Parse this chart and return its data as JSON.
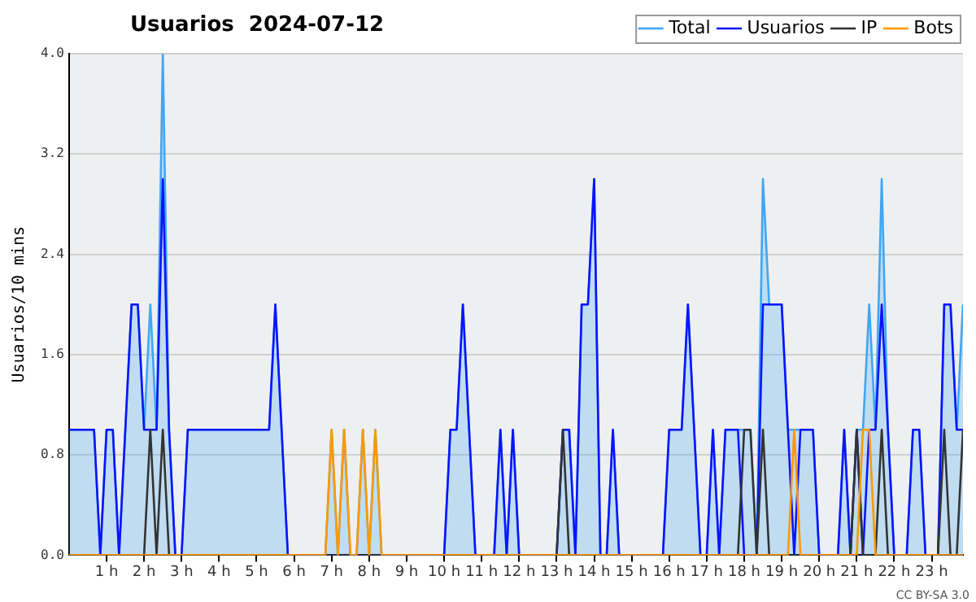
{
  "chart_data": {
    "type": "line",
    "title": "Usuarios  2024-07-12",
    "ylabel": "Usuarios/10 mins",
    "x": [
      "2024-07-12T00:00",
      "2024-07-12T00:10",
      "2024-07-12T00:20",
      "2024-07-12T00:30",
      "2024-07-12T00:40",
      "2024-07-12T00:50",
      "2024-07-12T01:00",
      "2024-07-12T01:10",
      "2024-07-12T01:20",
      "2024-07-12T01:30",
      "2024-07-12T01:40",
      "2024-07-12T01:50",
      "2024-07-12T02:00",
      "2024-07-12T02:10",
      "2024-07-12T02:20",
      "2024-07-12T02:30",
      "2024-07-12T02:40",
      "2024-07-12T02:50",
      "2024-07-12T03:00",
      "2024-07-12T03:10",
      "2024-07-12T03:20",
      "2024-07-12T03:30",
      "2024-07-12T03:40",
      "2024-07-12T03:50",
      "2024-07-12T04:00",
      "2024-07-12T04:10",
      "2024-07-12T04:20",
      "2024-07-12T04:30",
      "2024-07-12T04:40",
      "2024-07-12T04:50",
      "2024-07-12T05:00",
      "2024-07-12T05:10",
      "2024-07-12T05:20",
      "2024-07-12T05:30",
      "2024-07-12T05:40",
      "2024-07-12T05:50",
      "2024-07-12T06:00",
      "2024-07-12T06:10",
      "2024-07-12T06:20",
      "2024-07-12T06:30",
      "2024-07-12T06:40",
      "2024-07-12T06:50",
      "2024-07-12T07:00",
      "2024-07-12T07:10",
      "2024-07-12T07:20",
      "2024-07-12T07:30",
      "2024-07-12T07:40",
      "2024-07-12T07:50",
      "2024-07-12T08:00",
      "2024-07-12T08:10",
      "2024-07-12T08:20",
      "2024-07-12T08:30",
      "2024-07-12T08:40",
      "2024-07-12T08:50",
      "2024-07-12T09:00",
      "2024-07-12T09:10",
      "2024-07-12T09:20",
      "2024-07-12T09:30",
      "2024-07-12T09:40",
      "2024-07-12T09:50",
      "2024-07-12T10:00",
      "2024-07-12T10:10",
      "2024-07-12T10:20",
      "2024-07-12T10:30",
      "2024-07-12T10:40",
      "2024-07-12T10:50",
      "2024-07-12T11:00",
      "2024-07-12T11:10",
      "2024-07-12T11:20",
      "2024-07-12T11:30",
      "2024-07-12T11:40",
      "2024-07-12T11:50",
      "2024-07-12T12:00",
      "2024-07-12T12:10",
      "2024-07-12T12:20",
      "2024-07-12T12:30",
      "2024-07-12T12:40",
      "2024-07-12T12:50",
      "2024-07-12T13:00",
      "2024-07-12T13:10",
      "2024-07-12T13:20",
      "2024-07-12T13:30",
      "2024-07-12T13:40",
      "2024-07-12T13:50",
      "2024-07-12T14:00",
      "2024-07-12T14:10",
      "2024-07-12T14:20",
      "2024-07-12T14:30",
      "2024-07-12T14:40",
      "2024-07-12T14:50",
      "2024-07-12T15:00",
      "2024-07-12T15:10",
      "2024-07-12T15:20",
      "2024-07-12T15:30",
      "2024-07-12T15:40",
      "2024-07-12T15:50",
      "2024-07-12T16:00",
      "2024-07-12T16:10",
      "2024-07-12T16:20",
      "2024-07-12T16:30",
      "2024-07-12T16:40",
      "2024-07-12T16:50",
      "2024-07-12T17:00",
      "2024-07-12T17:10",
      "2024-07-12T17:20",
      "2024-07-12T17:30",
      "2024-07-12T17:40",
      "2024-07-12T17:50",
      "2024-07-12T18:00",
      "2024-07-12T18:10",
      "2024-07-12T18:20",
      "2024-07-12T18:30",
      "2024-07-12T18:40",
      "2024-07-12T18:50",
      "2024-07-12T19:00",
      "2024-07-12T19:10",
      "2024-07-12T19:20",
      "2024-07-12T19:30",
      "2024-07-12T19:40",
      "2024-07-12T19:50",
      "2024-07-12T20:00",
      "2024-07-12T20:10",
      "2024-07-12T20:20",
      "2024-07-12T20:30",
      "2024-07-12T20:40",
      "2024-07-12T20:50",
      "2024-07-12T21:00",
      "2024-07-12T21:10",
      "2024-07-12T21:20",
      "2024-07-12T21:30",
      "2024-07-12T21:40",
      "2024-07-12T21:50",
      "2024-07-12T22:00",
      "2024-07-12T22:10",
      "2024-07-12T22:20",
      "2024-07-12T22:30",
      "2024-07-12T22:40",
      "2024-07-12T22:50",
      "2024-07-12T23:00",
      "2024-07-12T23:10",
      "2024-07-12T23:20",
      "2024-07-12T23:30",
      "2024-07-12T23:40",
      "2024-07-12T23:50"
    ],
    "xlim": [
      "2024-07-12T00:00",
      "2024-07-12T23:50"
    ],
    "xticks": [
      {
        "value": "2024-07-12T01:00",
        "label": "1 h"
      },
      {
        "value": "2024-07-12T02:00",
        "label": "2 h"
      },
      {
        "value": "2024-07-12T03:00",
        "label": "3 h"
      },
      {
        "value": "2024-07-12T04:00",
        "label": "4 h"
      },
      {
        "value": "2024-07-12T05:00",
        "label": "5 h"
      },
      {
        "value": "2024-07-12T06:00",
        "label": "6 h"
      },
      {
        "value": "2024-07-12T07:00",
        "label": "7 h"
      },
      {
        "value": "2024-07-12T08:00",
        "label": "8 h"
      },
      {
        "value": "2024-07-12T09:00",
        "label": "9 h"
      },
      {
        "value": "2024-07-12T10:00",
        "label": "10 h"
      },
      {
        "value": "2024-07-12T11:00",
        "label": "11 h"
      },
      {
        "value": "2024-07-12T12:00",
        "label": "12 h"
      },
      {
        "value": "2024-07-12T13:00",
        "label": "13 h"
      },
      {
        "value": "2024-07-12T14:00",
        "label": "14 h"
      },
      {
        "value": "2024-07-12T15:00",
        "label": "15 h"
      },
      {
        "value": "2024-07-12T16:00",
        "label": "16 h"
      },
      {
        "value": "2024-07-12T17:00",
        "label": "17 h"
      },
      {
        "value": "2024-07-12T18:00",
        "label": "18 h"
      },
      {
        "value": "2024-07-12T19:00",
        "label": "19 h"
      },
      {
        "value": "2024-07-12T20:00",
        "label": "20 h"
      },
      {
        "value": "2024-07-12T21:00",
        "label": "21 h"
      },
      {
        "value": "2024-07-12T22:00",
        "label": "22 h"
      },
      {
        "value": "2024-07-12T23:00",
        "label": "23 h"
      }
    ],
    "ylim": [
      0,
      4
    ],
    "yticks": [
      {
        "value": 0,
        "label": "0.0"
      },
      0.8,
      1.6,
      2.4,
      3.2,
      {
        "value": 4,
        "label": "4.0"
      }
    ],
    "grid": "y",
    "legend": "top right",
    "marker": "none",
    "line_style": "solid",
    "annotations": [
      "CC BY-SA 3.0"
    ],
    "series": [
      {
        "name": "Total",
        "type": "area",
        "color": "#3fa6f5",
        "values": [
          1,
          1,
          1,
          1,
          1,
          0,
          1,
          1,
          0,
          1,
          2,
          2,
          1,
          2,
          1,
          4,
          1,
          0,
          0,
          1,
          1,
          1,
          1,
          1,
          1,
          1,
          1,
          1,
          1,
          1,
          1,
          1,
          1,
          2,
          1,
          0,
          0,
          0,
          0,
          0,
          0,
          0,
          1,
          0,
          1,
          0,
          0,
          1,
          0,
          1,
          0,
          0,
          0,
          0,
          0,
          0,
          0,
          0,
          0,
          0,
          0,
          1,
          1,
          2,
          1,
          0,
          0,
          0,
          0,
          1,
          0,
          1,
          0,
          0,
          0,
          0,
          0,
          0,
          0,
          1,
          1,
          0,
          2,
          2,
          3,
          0,
          0,
          1,
          0,
          0,
          0,
          0,
          0,
          0,
          0,
          0,
          1,
          1,
          1,
          2,
          1,
          0,
          0,
          1,
          0,
          1,
          1,
          1,
          1,
          1,
          0,
          3,
          2,
          2,
          2,
          1,
          1,
          1,
          1,
          1,
          0,
          0,
          0,
          0,
          1,
          0,
          1,
          1,
          2,
          1,
          3,
          1,
          0,
          0,
          0,
          1,
          1,
          0,
          0,
          0,
          2,
          2,
          1,
          2
        ]
      },
      {
        "name": "Usuarios",
        "type": "line",
        "color": "#0a14ff",
        "values": [
          1,
          1,
          1,
          1,
          1,
          0,
          1,
          1,
          0,
          1,
          2,
          2,
          1,
          1,
          1,
          3,
          1,
          0,
          0,
          1,
          1,
          1,
          1,
          1,
          1,
          1,
          1,
          1,
          1,
          1,
          1,
          1,
          1,
          2,
          1,
          0,
          0,
          0,
          0,
          0,
          0,
          0,
          0,
          0,
          0,
          0,
          0,
          0,
          0,
          0,
          0,
          0,
          0,
          0,
          0,
          0,
          0,
          0,
          0,
          0,
          0,
          1,
          1,
          2,
          1,
          0,
          0,
          0,
          0,
          1,
          0,
          1,
          0,
          0,
          0,
          0,
          0,
          0,
          0,
          1,
          1,
          0,
          2,
          2,
          3,
          0,
          0,
          1,
          0,
          0,
          0,
          0,
          0,
          0,
          0,
          0,
          1,
          1,
          1,
          2,
          1,
          0,
          0,
          1,
          0,
          1,
          1,
          1,
          0,
          0,
          0,
          2,
          2,
          2,
          2,
          1,
          0,
          1,
          1,
          1,
          0,
          0,
          0,
          0,
          1,
          0,
          1,
          0,
          1,
          1,
          2,
          1,
          0,
          0,
          0,
          1,
          1,
          0,
          0,
          0,
          2,
          2,
          1,
          1
        ]
      },
      {
        "name": "IP",
        "type": "line",
        "color": "#333333",
        "values": [
          0,
          0,
          0,
          0,
          0,
          0,
          0,
          0,
          0,
          0,
          0,
          0,
          0,
          1,
          0,
          1,
          0,
          0,
          0,
          0,
          0,
          0,
          0,
          0,
          0,
          0,
          0,
          0,
          0,
          0,
          0,
          0,
          0,
          0,
          0,
          0,
          0,
          0,
          0,
          0,
          0,
          0,
          0,
          0,
          0,
          0,
          0,
          0,
          0,
          0,
          0,
          0,
          0,
          0,
          0,
          0,
          0,
          0,
          0,
          0,
          0,
          0,
          0,
          0,
          0,
          0,
          0,
          0,
          0,
          0,
          0,
          0,
          0,
          0,
          0,
          0,
          0,
          0,
          0,
          1,
          0,
          0,
          0,
          0,
          0,
          0,
          0,
          0,
          0,
          0,
          0,
          0,
          0,
          0,
          0,
          0,
          0,
          0,
          0,
          0,
          0,
          0,
          0,
          0,
          0,
          0,
          0,
          0,
          1,
          1,
          0,
          1,
          0,
          0,
          0,
          0,
          0,
          0,
          0,
          0,
          0,
          0,
          0,
          0,
          0,
          0,
          1,
          0,
          0,
          0,
          1,
          0,
          0,
          0,
          0,
          0,
          0,
          0,
          0,
          0,
          1,
          0,
          0,
          1
        ]
      },
      {
        "name": "Bots",
        "type": "line",
        "color": "#ff9900",
        "values": [
          0,
          0,
          0,
          0,
          0,
          0,
          0,
          0,
          0,
          0,
          0,
          0,
          0,
          0,
          0,
          0,
          0,
          0,
          0,
          0,
          0,
          0,
          0,
          0,
          0,
          0,
          0,
          0,
          0,
          0,
          0,
          0,
          0,
          0,
          0,
          0,
          0,
          0,
          0,
          0,
          0,
          0,
          1,
          0,
          1,
          0,
          0,
          1,
          0,
          1,
          0,
          0,
          0,
          0,
          0,
          0,
          0,
          0,
          0,
          0,
          0,
          0,
          0,
          0,
          0,
          0,
          0,
          0,
          0,
          0,
          0,
          0,
          0,
          0,
          0,
          0,
          0,
          0,
          0,
          0,
          0,
          0,
          0,
          0,
          0,
          0,
          0,
          0,
          0,
          0,
          0,
          0,
          0,
          0,
          0,
          0,
          0,
          0,
          0,
          0,
          0,
          0,
          0,
          0,
          0,
          0,
          0,
          0,
          0,
          0,
          0,
          0,
          0,
          0,
          0,
          0,
          1,
          0,
          0,
          0,
          0,
          0,
          0,
          0,
          0,
          0,
          0,
          1,
          1,
          0,
          0,
          0,
          0,
          0,
          0,
          0,
          0,
          0,
          0,
          0,
          0,
          0,
          0,
          0
        ]
      }
    ]
  }
}
